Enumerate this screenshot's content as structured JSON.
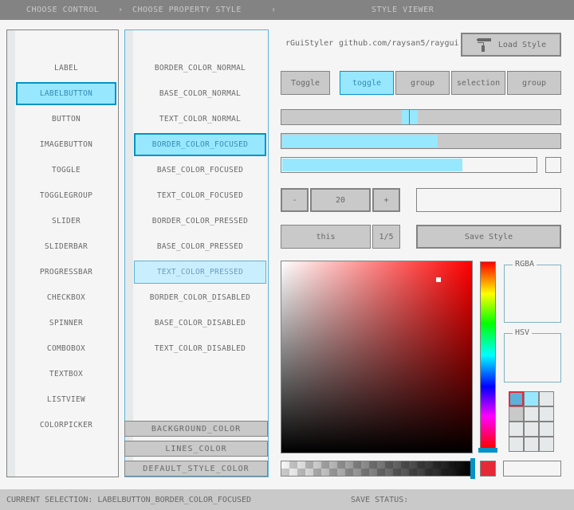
{
  "header": {
    "step1": "CHOOSE CONTROL",
    "sep1": "›",
    "step2": "CHOOSE PROPERTY STYLE",
    "sep2": "›",
    "step3": "STYLE VIEWER"
  },
  "controls": [
    "LABEL",
    "LABELBUTTON",
    "BUTTON",
    "IMAGEBUTTON",
    "TOGGLE",
    "TOGGLEGROUP",
    "SLIDER",
    "SLIDERBAR",
    "PROGRESSBAR",
    "CHECKBOX",
    "SPINNER",
    "COMBOBOX",
    "TEXTBOX",
    "LISTVIEW",
    "COLORPICKER"
  ],
  "properties": [
    "BORDER_COLOR_NORMAL",
    "BASE_COLOR_NORMAL",
    "TEXT_COLOR_NORMAL",
    "BORDER_COLOR_FOCUSED",
    "BASE_COLOR_FOCUSED",
    "TEXT_COLOR_FOCUSED",
    "BORDER_COLOR_PRESSED",
    "BASE_COLOR_PRESSED",
    "TEXT_COLOR_PRESSED",
    "BORDER_COLOR_DISABLED",
    "BASE_COLOR_DISABLED",
    "TEXT_COLOR_DISABLED"
  ],
  "global_buttons": {
    "background": "BACKGROUND_COLOR",
    "lines": "LINES_COLOR",
    "default": "DEFAULT_STYLE_COLOR"
  },
  "viewer": {
    "app_name": "rGuiStyler",
    "url": "github.com/raysan5/raygui",
    "load_style": "Load Style",
    "load_icon": "paint-roller-icon",
    "toggle": "Toggle",
    "toggle_group": [
      "toggle",
      "group",
      "selection",
      "group"
    ],
    "slider_value": 0.46,
    "sliderbar_value": 0.56,
    "progress_value": 0.71,
    "checkbox_checked": false,
    "spinner": {
      "minus": "-",
      "value": "20",
      "plus": "+"
    },
    "textbox": "",
    "combo": {
      "value": "this",
      "count": "1/5"
    },
    "save_style": "Save Style",
    "rgba_label": "RGBA",
    "hsv_label": "HSV",
    "hue": 0,
    "alpha": 1.0,
    "selected_color": "#e62937",
    "color_text": ""
  },
  "colors": {
    "accent": "#97e8ff",
    "accent_border": "#0492c7",
    "border": "#838383"
  },
  "status": {
    "selection": "CURRENT SELECTION: LABELBUTTON_BORDER_COLOR_FOCUSED",
    "save": "SAVE STATUS:"
  }
}
